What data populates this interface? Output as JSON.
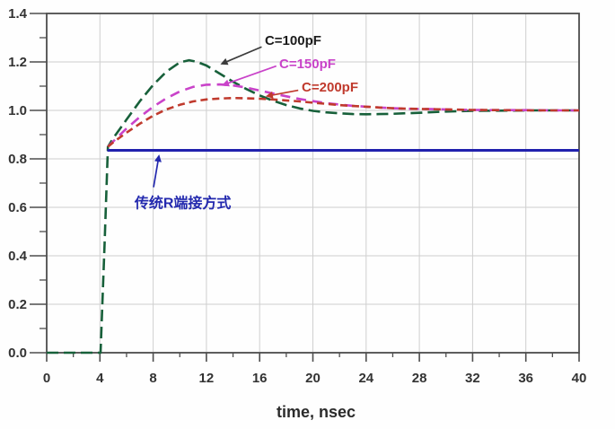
{
  "page": {
    "background": "#ffffff"
  },
  "chart_data": {
    "type": "line",
    "title": "",
    "xlabel": "time, nsec",
    "ylabel": "",
    "xlim": [
      0,
      40
    ],
    "ylim": [
      0,
      1.4
    ],
    "x_major_tick_step": 4,
    "x_minor_tick_step": 2,
    "y_major_tick_step": 0.2,
    "y_minor_tick_step": 0.1,
    "x_tick_labels": [
      "0",
      "4",
      "8",
      "12",
      "16",
      "20",
      "24",
      "28",
      "32",
      "36",
      "40"
    ],
    "y_tick_labels": [
      "0.0",
      "0.2",
      "0.4",
      "0.6",
      "0.8",
      "1.0",
      "1.2",
      "1.4"
    ],
    "grid": true,
    "legend_position": "inline-annotations",
    "colors": {
      "grid": "#cfcfcf",
      "frame": "#4d4d4d",
      "tick_text": "#333333"
    },
    "series": [
      {
        "name": "C=100pF",
        "color": "#17603a",
        "dash": "13 6",
        "width": 2.6,
        "points": [
          [
            0,
            0
          ],
          [
            4.05,
            0
          ],
          [
            4.35,
            0.45
          ],
          [
            4.6,
            0.85
          ],
          [
            5,
            0.885
          ],
          [
            6,
            0.962
          ],
          [
            7,
            1.038
          ],
          [
            8,
            1.105
          ],
          [
            9,
            1.16
          ],
          [
            10,
            1.198
          ],
          [
            10.7,
            1.207
          ],
          [
            11.3,
            1.2
          ],
          [
            12,
            1.185
          ],
          [
            13,
            1.152
          ],
          [
            14,
            1.118
          ],
          [
            15,
            1.088
          ],
          [
            16,
            1.062
          ],
          [
            17,
            1.04
          ],
          [
            18,
            1.022
          ],
          [
            19,
            1.008
          ],
          [
            20,
            0.998
          ],
          [
            21,
            0.992
          ],
          [
            22,
            0.988
          ],
          [
            23,
            0.985
          ],
          [
            24,
            0.984
          ],
          [
            25,
            0.985
          ],
          [
            26,
            0.986
          ],
          [
            27,
            0.988
          ],
          [
            28,
            0.99
          ],
          [
            29,
            0.993
          ],
          [
            30,
            0.995
          ],
          [
            32,
            0.998
          ],
          [
            34,
            0.999
          ],
          [
            36,
            1.0
          ],
          [
            38,
            1.0
          ],
          [
            40,
            1.0
          ]
        ]
      },
      {
        "name": "C=150pF",
        "color": "#c943c9",
        "dash": "11 7",
        "width": 2.6,
        "points": [
          [
            4.6,
            0.85
          ],
          [
            5,
            0.872
          ],
          [
            6,
            0.925
          ],
          [
            7,
            0.973
          ],
          [
            8,
            1.015
          ],
          [
            9,
            1.05
          ],
          [
            10,
            1.078
          ],
          [
            11,
            1.097
          ],
          [
            12,
            1.106
          ],
          [
            13,
            1.107
          ],
          [
            14,
            1.103
          ],
          [
            15,
            1.094
          ],
          [
            16,
            1.082
          ],
          [
            17,
            1.07
          ],
          [
            18,
            1.058
          ],
          [
            19,
            1.047
          ],
          [
            20,
            1.038
          ],
          [
            21,
            1.03
          ],
          [
            22,
            1.024
          ],
          [
            23,
            1.019
          ],
          [
            24,
            1.015
          ],
          [
            25,
            1.012
          ],
          [
            26,
            1.009
          ],
          [
            27,
            1.007
          ],
          [
            28,
            1.006
          ],
          [
            29,
            1.005
          ],
          [
            30,
            1.004
          ],
          [
            32,
            1.002
          ],
          [
            34,
            1.001
          ],
          [
            36,
            1.001
          ],
          [
            38,
            1.0
          ],
          [
            40,
            1.0
          ]
        ]
      },
      {
        "name": "C=200pF",
        "color": "#c03a2d",
        "dash": "8 5",
        "width": 2.6,
        "points": [
          [
            4.6,
            0.85
          ],
          [
            5,
            0.868
          ],
          [
            6,
            0.908
          ],
          [
            7,
            0.945
          ],
          [
            8,
            0.978
          ],
          [
            9,
            1.004
          ],
          [
            10,
            1.023
          ],
          [
            11,
            1.037
          ],
          [
            12,
            1.045
          ],
          [
            13,
            1.049
          ],
          [
            14,
            1.051
          ],
          [
            15,
            1.05
          ],
          [
            16,
            1.048
          ],
          [
            17,
            1.045
          ],
          [
            18,
            1.041
          ],
          [
            19,
            1.037
          ],
          [
            20,
            1.032
          ],
          [
            21,
            1.027
          ],
          [
            22,
            1.022
          ],
          [
            23,
            1.018
          ],
          [
            24,
            1.015
          ],
          [
            25,
            1.012
          ],
          [
            26,
            1.009
          ],
          [
            27,
            1.007
          ],
          [
            28,
            1.006
          ],
          [
            29,
            1.005
          ],
          [
            30,
            1.004
          ],
          [
            32,
            1.002
          ],
          [
            34,
            1.001
          ],
          [
            36,
            1.0
          ],
          [
            38,
            1.0
          ],
          [
            40,
            1.0
          ]
        ]
      },
      {
        "name": "传统R端接方式",
        "color": "#2121ad",
        "dash": "",
        "width": 3,
        "points": [
          [
            4.55,
            0.835
          ],
          [
            40,
            0.835
          ]
        ]
      }
    ],
    "annotations": [
      {
        "id": "c100",
        "text": "C=100pF",
        "color": "#1c1c1c",
        "arrow_color": "#3c3c3c",
        "font_size": 15,
        "label_t": 16.39,
        "label_v": 1.27,
        "from_t": 16.15,
        "from_v": 1.262,
        "to_t": 13.05,
        "to_v": 1.19
      },
      {
        "id": "c150",
        "text": "C=150pF",
        "color": "#c943c9",
        "arrow_color": "#c943c9",
        "font_size": 15,
        "label_t": 17.47,
        "label_v": 1.174,
        "from_t": 17.25,
        "from_v": 1.183,
        "to_t": 13.15,
        "to_v": 1.103
      },
      {
        "id": "c200",
        "text": "C=200pF",
        "color": "#c03a2d",
        "arrow_color": "#c03a2d",
        "font_size": 15,
        "label_t": 19.16,
        "label_v": 1.078,
        "from_t": 18.9,
        "from_v": 1.083,
        "to_t": 16.45,
        "to_v": 1.058
      },
      {
        "id": "r-termination",
        "text": "传统R端接方式",
        "color": "#2329ae",
        "arrow_color": "#2329ae",
        "font_size": 16,
        "label_t": 6.6,
        "label_v": 0.598,
        "from_t": 8.03,
        "from_v": 0.683,
        "to_t": 8.45,
        "to_v": 0.818
      }
    ]
  }
}
